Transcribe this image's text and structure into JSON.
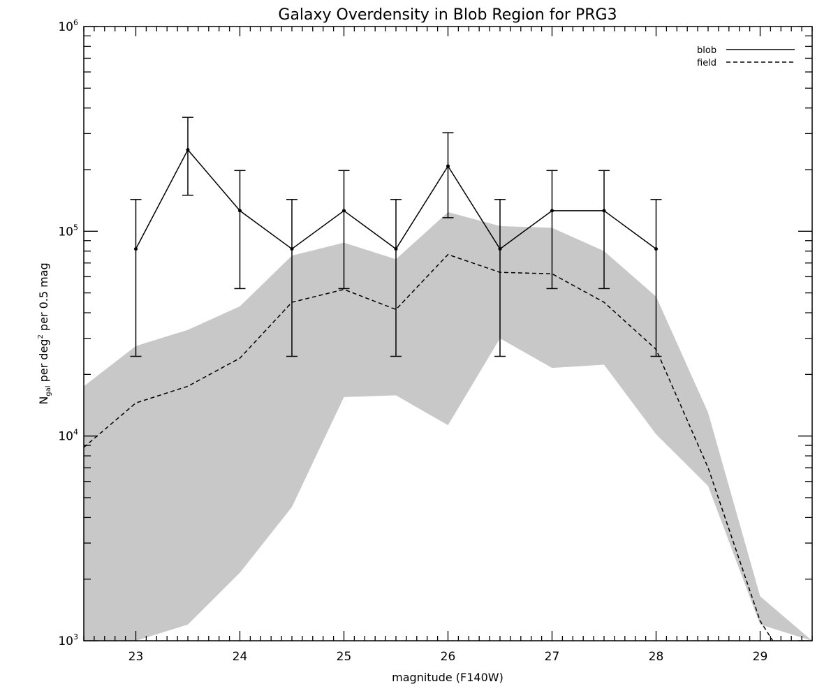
{
  "chart_data": {
    "type": "line",
    "title": "Galaxy Overdensity in Blob Region for PRG3",
    "xlabel": "magnitude (F140W)",
    "ylabel": {
      "main": "N",
      "subscript": "gal",
      "middle": " per deg",
      "superscript": "2",
      "tail": " per 0.5 mag"
    },
    "xlim": [
      22.5,
      29.5
    ],
    "ylim": [
      1000,
      1000000
    ],
    "yscale": "log",
    "grid": false,
    "legend_position": "top-right",
    "x_ticks": [
      23,
      24,
      25,
      26,
      27,
      28,
      29
    ],
    "y_ticks": [
      {
        "base": "10",
        "exp": "3",
        "value": 1000
      },
      {
        "base": "10",
        "exp": "4",
        "value": 10000
      },
      {
        "base": "10",
        "exp": "5",
        "value": 100000
      },
      {
        "base": "10",
        "exp": "6",
        "value": 1000000
      }
    ],
    "series": [
      {
        "name": "blob",
        "style": "solid",
        "color": "#000000",
        "x": [
          23.0,
          23.5,
          24.0,
          24.5,
          25.0,
          25.5,
          26.0,
          26.5,
          27.0,
          27.5,
          28.0
        ],
        "values": [
          82000,
          250000,
          126000,
          82000,
          126000,
          82000,
          208000,
          82000,
          126000,
          126000,
          82000
        ],
        "err_low": [
          24500,
          150000,
          52500,
          24500,
          52500,
          24500,
          116500,
          24500,
          52500,
          52500,
          24500
        ],
        "err_high": [
          143000,
          360000,
          198000,
          143000,
          198000,
          143000,
          303000,
          143000,
          198000,
          198000,
          143000
        ]
      },
      {
        "name": "field",
        "style": "dashed",
        "color": "#000000",
        "x": [
          22.5,
          23.0,
          23.5,
          24.0,
          24.5,
          25.0,
          25.5,
          26.0,
          26.5,
          27.0,
          27.5,
          28.0,
          28.5,
          29.0,
          29.5
        ],
        "values": [
          8800,
          14500,
          17500,
          24000,
          45000,
          52000,
          41500,
          77000,
          63000,
          62000,
          45000,
          26500,
          7000,
          1250,
          400
        ]
      }
    ],
    "field_band": {
      "color": "#c8c8c8",
      "x": [
        22.5,
        23.0,
        23.5,
        24.0,
        24.5,
        25.0,
        25.5,
        26.0,
        26.5,
        27.0,
        27.5,
        28.0,
        28.5,
        29.0,
        29.5
      ],
      "upper": [
        17500,
        27500,
        33000,
        43000,
        76000,
        88000,
        73000,
        124000,
        106000,
        104000,
        80000,
        48000,
        13000,
        1650,
        1000
      ],
      "lower": [
        1000,
        1000,
        1200,
        2150,
        4500,
        15500,
        15800,
        11300,
        30000,
        21500,
        22300,
        10200,
        5700,
        1200,
        1000
      ]
    }
  }
}
